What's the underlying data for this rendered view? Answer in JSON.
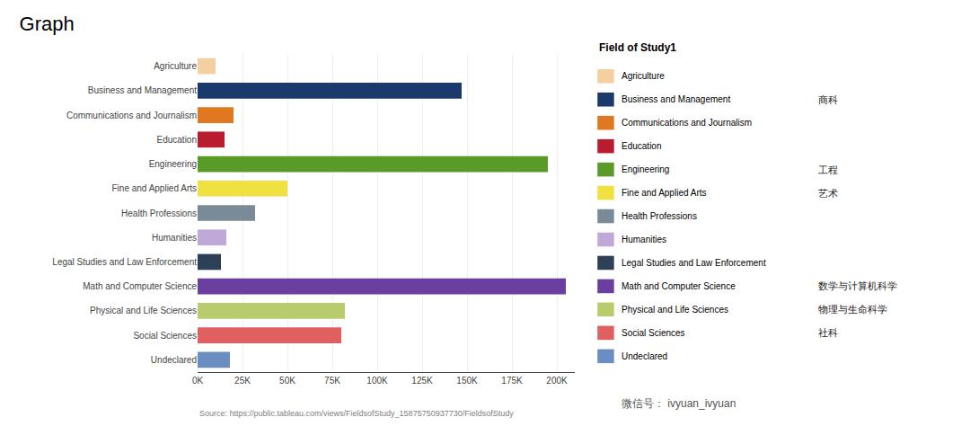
{
  "chart_data": {
    "type": "bar",
    "orientation": "horizontal",
    "title": "Graph",
    "categories": [
      "Agriculture",
      "Business and Management",
      "Communications and Journalism",
      "Education",
      "Engineering",
      "Fine and Applied Arts",
      "Health Professions",
      "Humanities",
      "Legal Studies and Law Enforcement",
      "Math and Computer Science",
      "Physical and Life Sciences",
      "Social Sciences",
      "Undeclared"
    ],
    "values": [
      10000,
      147000,
      20000,
      15000,
      195000,
      50000,
      32000,
      16000,
      13000,
      205000,
      82000,
      80000,
      18000
    ],
    "colors": [
      "#F5CFA0",
      "#1B3A6B",
      "#E07820",
      "#B81C2E",
      "#5A9A28",
      "#F0E040",
      "#7A8A96",
      "#C0A8D8",
      "#2E4057",
      "#6B3FA0",
      "#B8CC6E",
      "#E06060",
      "#6B8EC2"
    ],
    "xlim": [
      0,
      210000
    ],
    "xticks": [
      {
        "value": 0,
        "label": "0K"
      },
      {
        "value": 25000,
        "label": "25K"
      },
      {
        "value": 50000,
        "label": "50K"
      },
      {
        "value": 75000,
        "label": "75K"
      },
      {
        "value": 100000,
        "label": "100K"
      },
      {
        "value": 125000,
        "label": "125K"
      },
      {
        "value": 150000,
        "label": "150K"
      },
      {
        "value": 175000,
        "label": "175K"
      },
      {
        "value": 200000,
        "label": "200K"
      }
    ],
    "grid": true,
    "legend": "right",
    "legend_title": "Field of Study1",
    "legend_notes": {
      "Business and Management": "商科",
      "Engineering": "工程",
      "Fine and Applied Arts": "艺术",
      "Math and Computer Science": "数学与计算机科学",
      "Physical and Life Sciences": "物理与生命科学",
      "Social Sciences": "社科"
    },
    "annotations": [
      {
        "text": "Source: https://public.tableau.com/views/FieldsofStudy_15875750937730/FieldsofStudy"
      },
      {
        "text": "微信号： ivyuan_ivyuan"
      }
    ]
  }
}
